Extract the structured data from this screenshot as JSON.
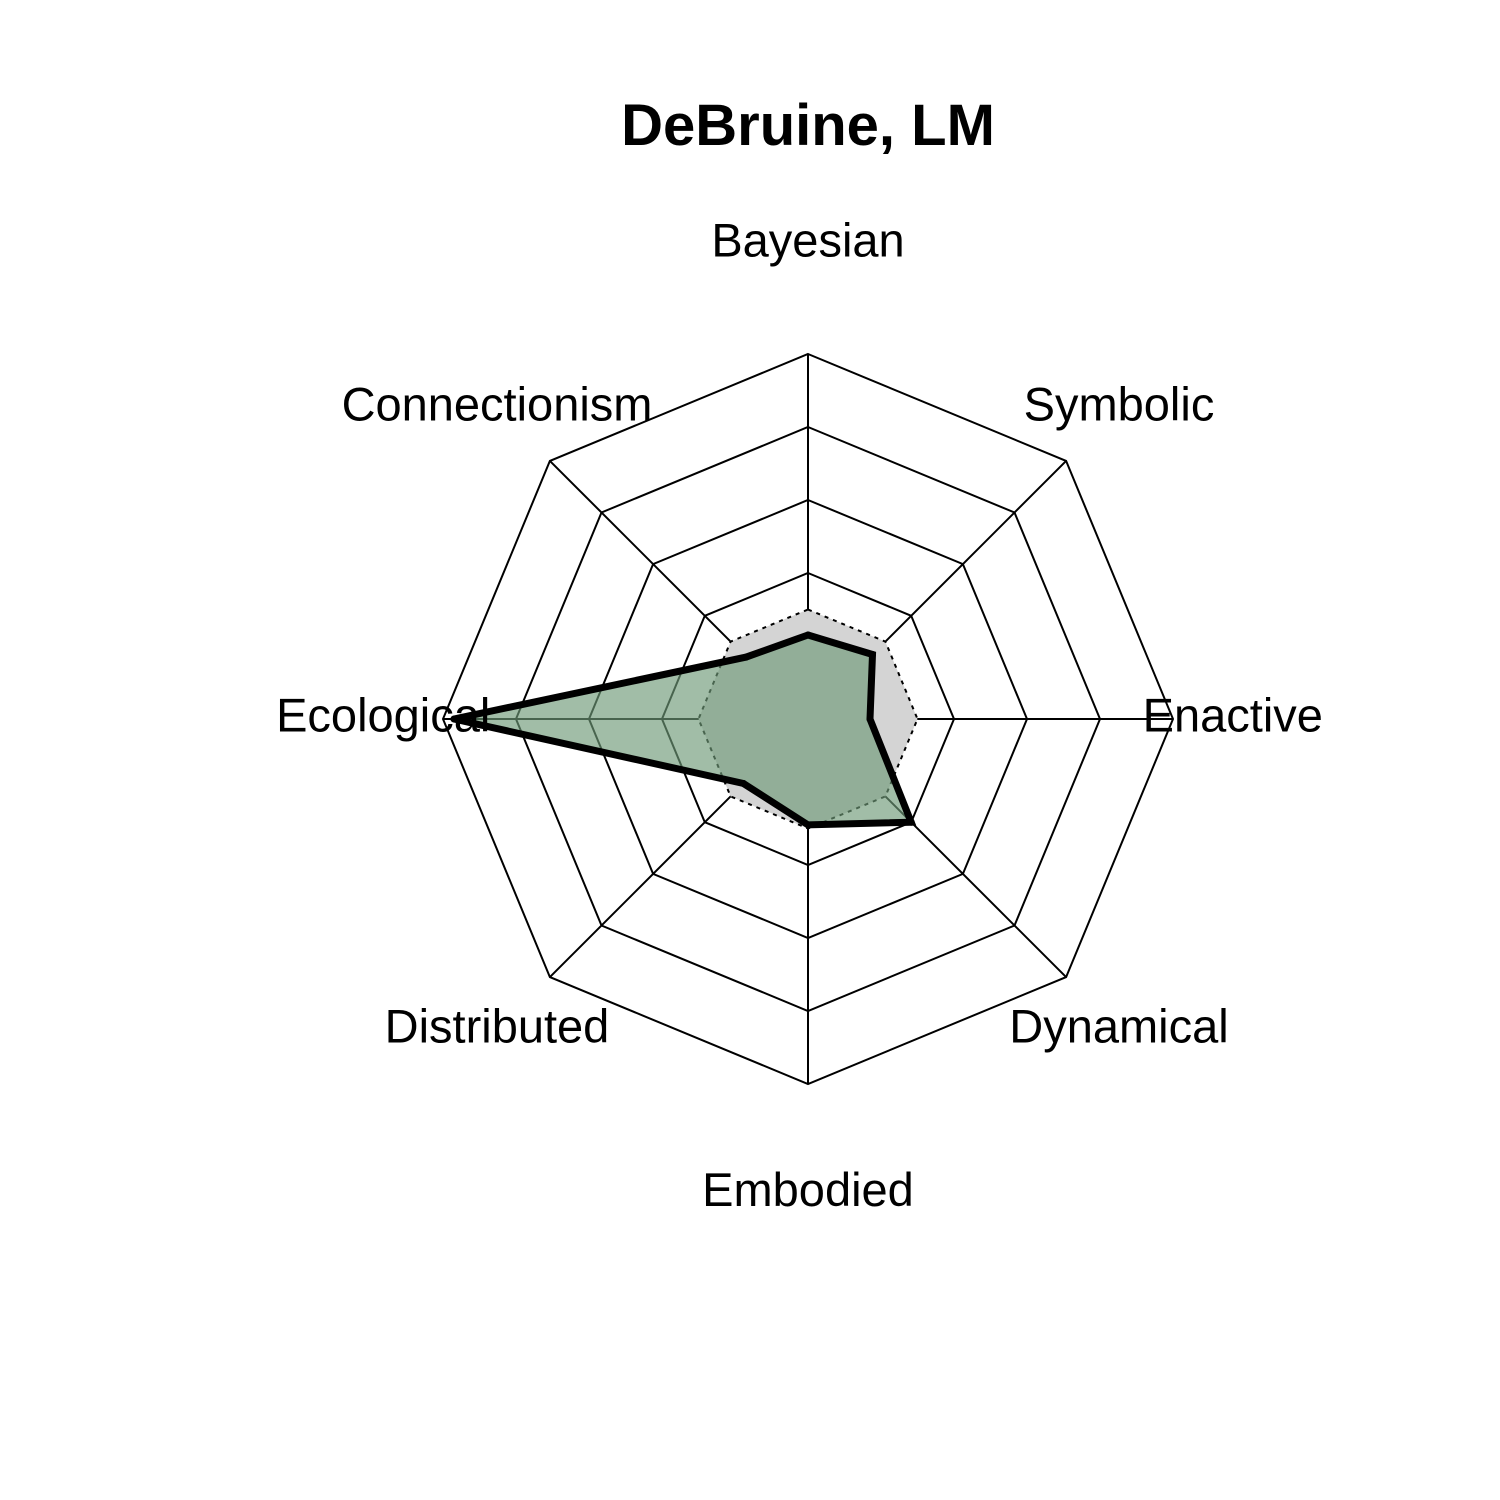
{
  "chart_data": {
    "type": "radar",
    "title": "DeBruine, LM",
    "axes": [
      "Bayesian",
      "Symbolic",
      "Enactive",
      "Dynamical",
      "Embodied",
      "Distributed",
      "Ecological",
      "Connectionism"
    ],
    "range": [
      0,
      5
    ],
    "rings": 5,
    "grid": true,
    "series": [
      {
        "role": "reference",
        "style": "dotted outline, light grey fill",
        "values": [
          1.5,
          1.5,
          1.5,
          1.5,
          1.5,
          1.5,
          1.5,
          1.5
        ]
      },
      {
        "role": "person",
        "style": "thick black outline, green fill",
        "values": [
          1.15,
          1.25,
          0.85,
          2.0,
          1.45,
          1.25,
          4.85,
          1.2
        ]
      }
    ],
    "colors": {
      "grid": "#000000",
      "reference_fill": "#d4d4d4",
      "series_fill": "#6e9a78",
      "series_stroke": "#000000"
    }
  }
}
